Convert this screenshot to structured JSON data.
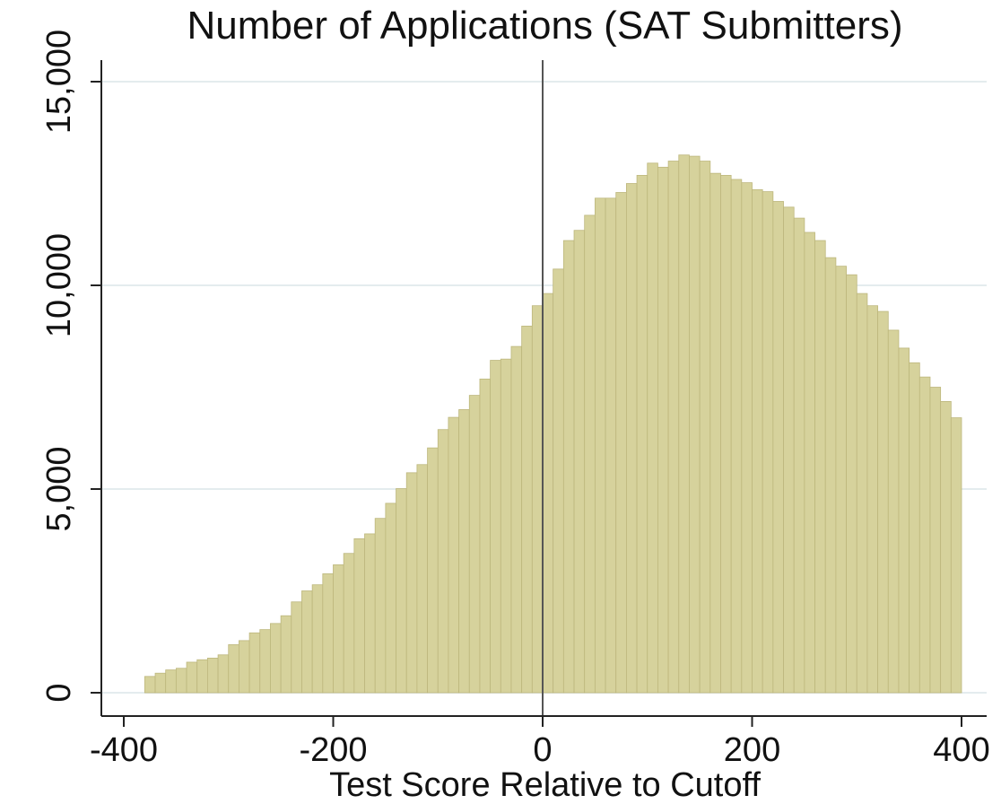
{
  "chart_data": {
    "type": "bar",
    "title": "Number of Applications (SAT Submitters)",
    "xlabel": "Test Score Relative to Cutoff",
    "ylabel": "",
    "xlim": [
      -410,
      410
    ],
    "ylim": [
      -400,
      15500
    ],
    "bin_width": 10,
    "x_ticks": [
      -400,
      -200,
      0,
      200,
      400
    ],
    "x_tick_labels": [
      "-400",
      "-200",
      "0",
      "200",
      "400"
    ],
    "y_ticks": [
      0,
      5000,
      10000,
      15000
    ],
    "y_tick_labels": [
      "0",
      "5,000",
      "10,000",
      "15,000"
    ],
    "grid": true,
    "cutoff_line": 0,
    "bar_color": "#d6d29c",
    "bar_edge_color": "#bdb77d",
    "bin_starts": [
      -380,
      -370,
      -360,
      -350,
      -340,
      -330,
      -320,
      -310,
      -300,
      -290,
      -280,
      -270,
      -260,
      -250,
      -240,
      -230,
      -220,
      -210,
      -200,
      -190,
      -180,
      -170,
      -160,
      -150,
      -140,
      -130,
      -120,
      -110,
      -100,
      -90,
      -80,
      -70,
      -60,
      -50,
      -40,
      -30,
      -20,
      -10,
      0,
      10,
      20,
      30,
      40,
      50,
      60,
      70,
      80,
      90,
      100,
      110,
      120,
      130,
      140,
      150,
      160,
      170,
      180,
      190,
      200,
      210,
      220,
      230,
      240,
      250,
      260,
      270,
      280,
      290,
      300,
      310,
      320,
      330,
      340,
      350,
      360,
      370,
      380,
      390
    ],
    "values": [
      400,
      480,
      560,
      600,
      750,
      810,
      850,
      930,
      1180,
      1280,
      1470,
      1550,
      1700,
      1890,
      2230,
      2500,
      2650,
      2920,
      3140,
      3420,
      3780,
      3900,
      4280,
      4650,
      5010,
      5400,
      5600,
      6010,
      6460,
      6760,
      6950,
      7300,
      7700,
      8160,
      8190,
      8500,
      9000,
      9500,
      9800,
      10400,
      11100,
      11350,
      11720,
      12140,
      12140,
      12280,
      12500,
      12700,
      13000,
      12900,
      13050,
      13200,
      13170,
      13050,
      12750,
      12700,
      12600,
      12520,
      12350,
      12300,
      12060,
      11920,
      11650,
      11300,
      11100,
      10680,
      10470,
      10260,
      9800,
      9500,
      9360,
      8900,
      8460,
      8100,
      7750,
      7500,
      7150,
      6750
    ]
  }
}
